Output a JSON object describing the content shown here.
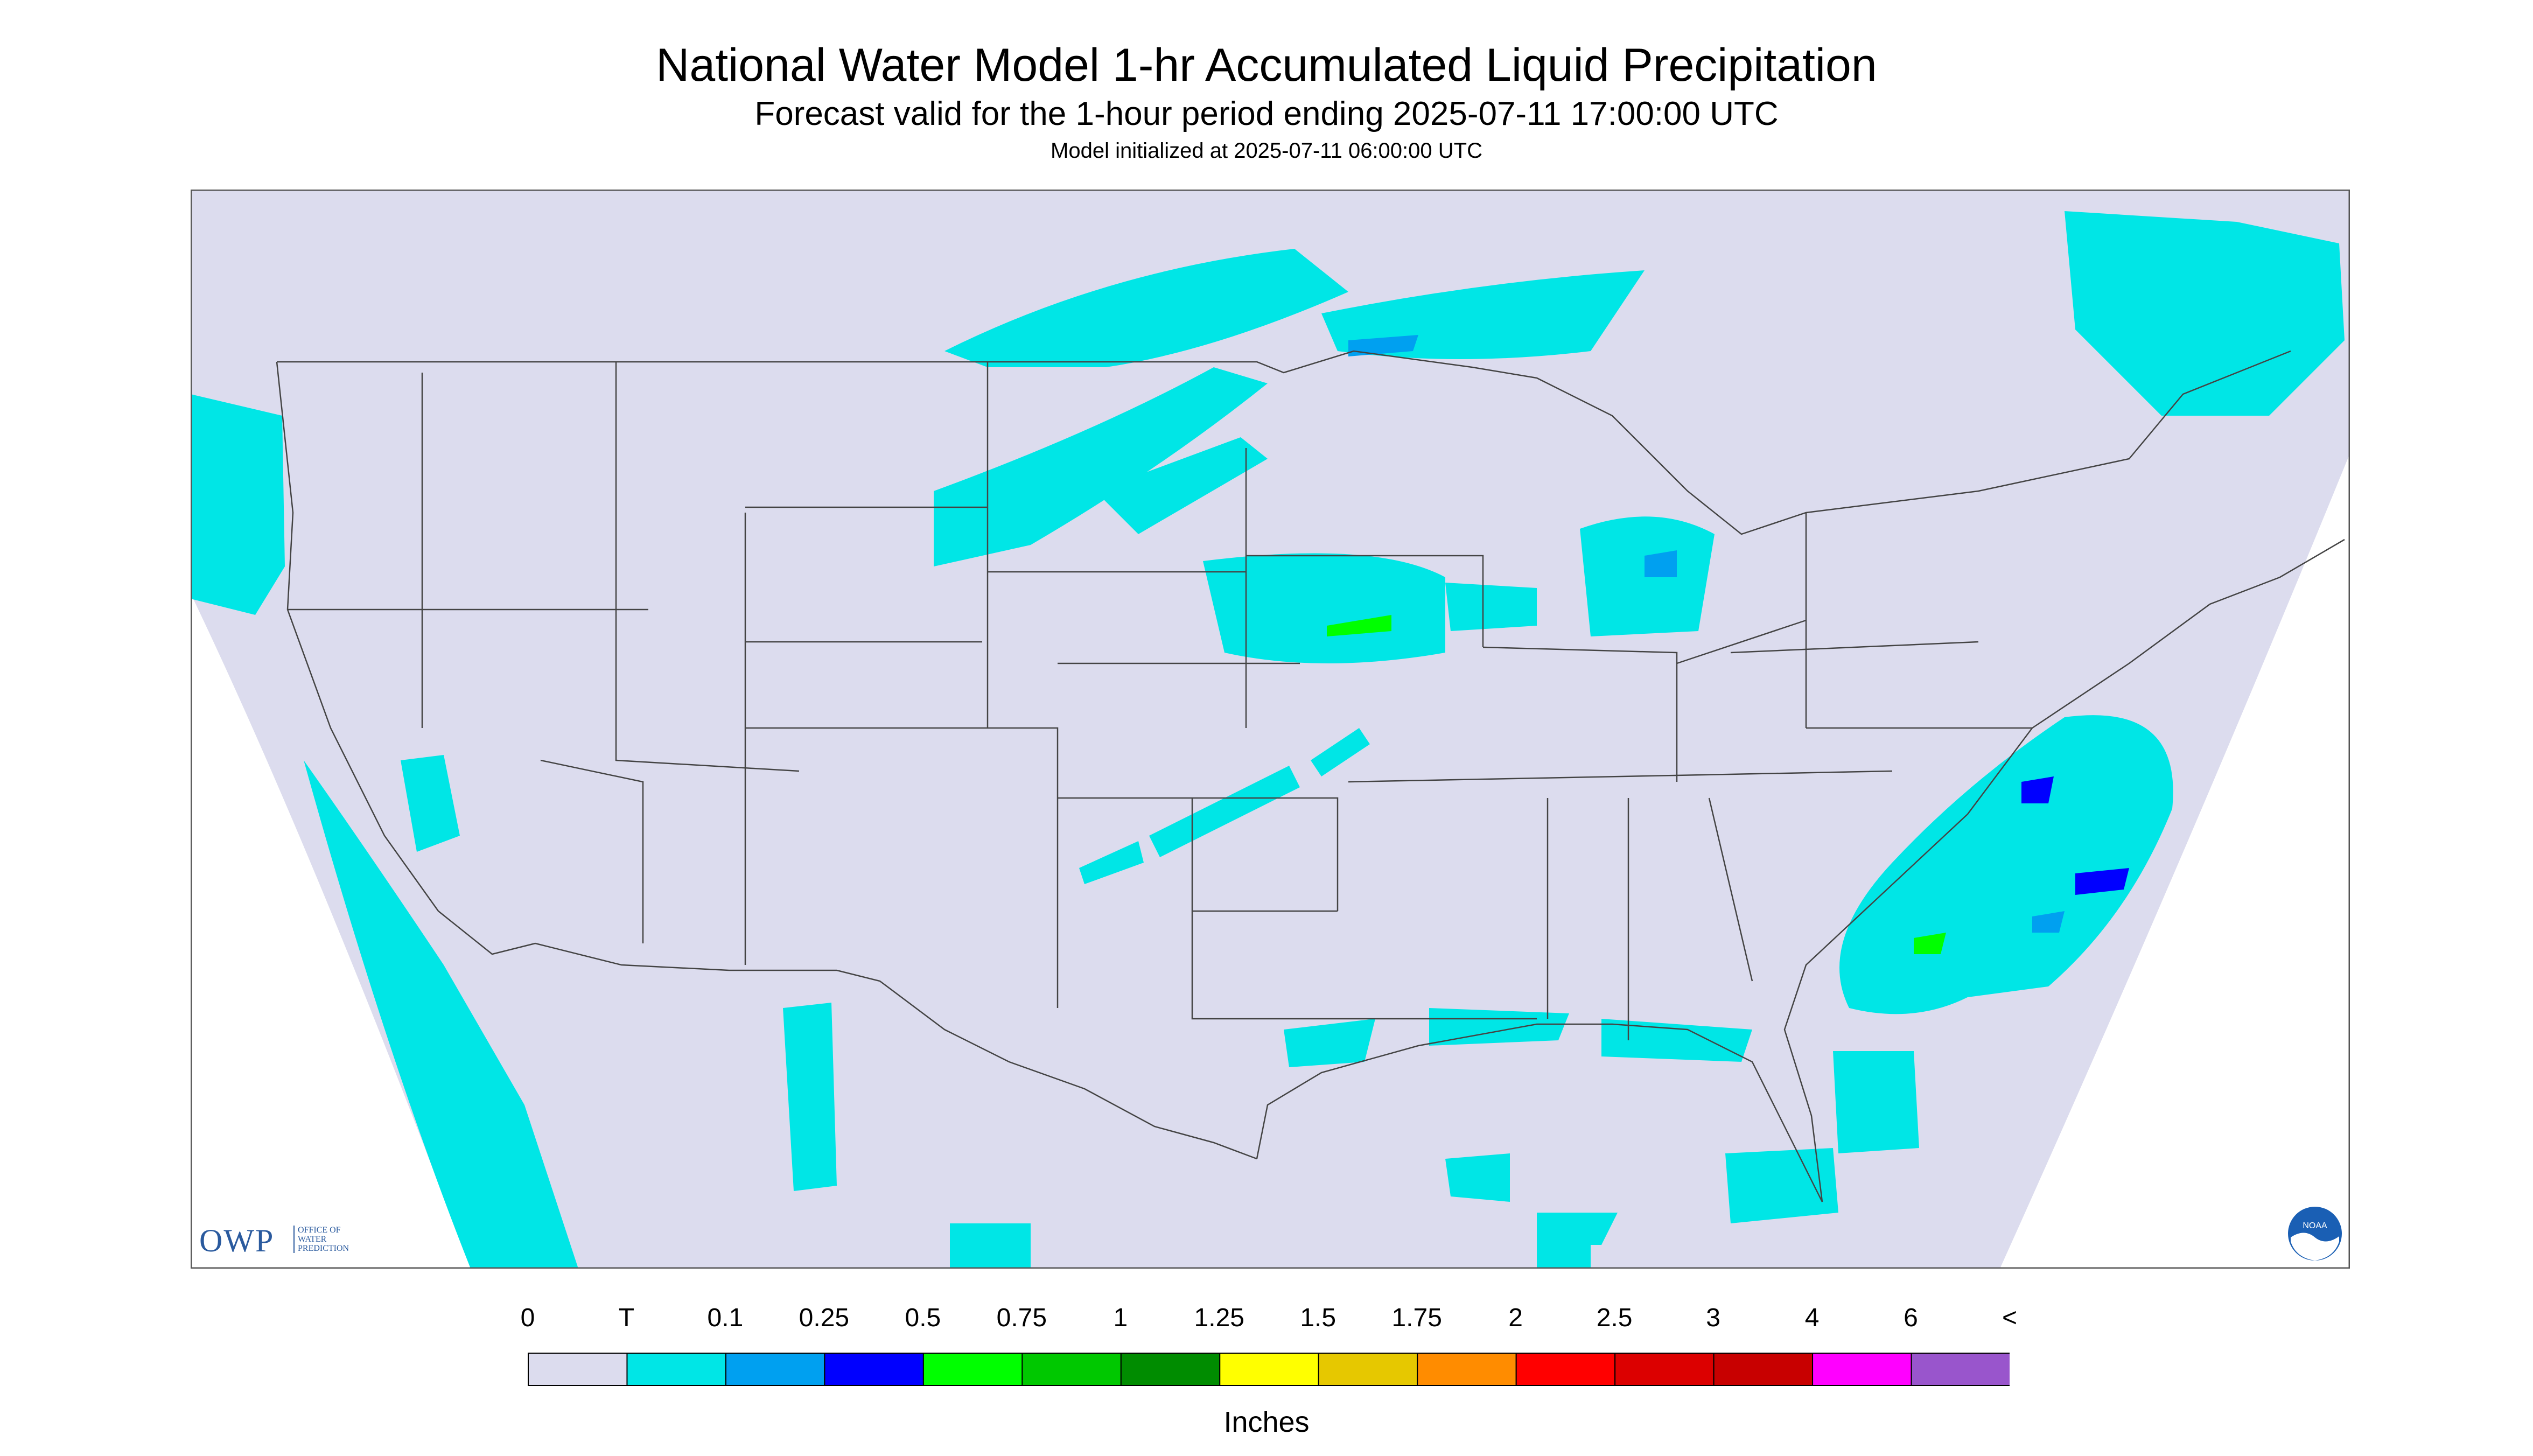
{
  "title": "National Water Model 1-hr Accumulated Liquid Precipitation",
  "subtitle": "Forecast valid for the 1-hour period ending 2025-07-11 17:00:00 UTC",
  "init_text": "Model initialized at 2025-07-11 06:00:00 UTC",
  "logo": {
    "owp_text": "OWP",
    "owp_sub": "OFFICE OF WATER PREDICTION",
    "noaa_text": "NOAA"
  },
  "colors": {
    "background": "#dcdcee",
    "trace": "#00e6e6",
    "border": "#555555"
  },
  "legend": {
    "units": "Inches",
    "labels": [
      "0",
      "T",
      "0.1",
      "0.25",
      "0.5",
      "0.75",
      "1",
      "1.25",
      "1.5",
      "1.75",
      "2",
      "2.5",
      "3",
      "4",
      "6",
      "<"
    ],
    "colors": [
      "#dcdcee",
      "#00e6e6",
      "#00a0f0",
      "#0000ff",
      "#00ff00",
      "#00c800",
      "#008c00",
      "#ffff00",
      "#e6c800",
      "#ff8c00",
      "#ff0000",
      "#dc0000",
      "#c80000",
      "#ff00ff",
      "#9955cc"
    ]
  }
}
